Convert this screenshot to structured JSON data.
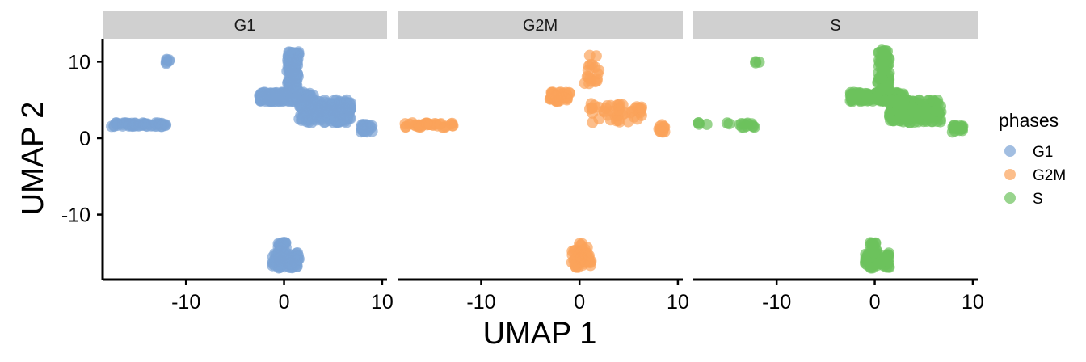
{
  "chart_data": {
    "type": "scatter",
    "xlabel": "UMAP 1",
    "ylabel": "UMAP 2",
    "xlim": [
      -18.5,
      10.5
    ],
    "ylim": [
      -18.5,
      13
    ],
    "x_ticks": [
      -10,
      0,
      10
    ],
    "x_tick_labels": [
      "-10",
      "0",
      "10"
    ],
    "y_ticks": [
      10,
      0,
      -10
    ],
    "y_tick_labels": [
      "10",
      "0",
      "-10"
    ],
    "grid": false,
    "legend": {
      "title": "phases",
      "position": "right"
    },
    "facets": [
      "G1",
      "G2M",
      "S"
    ],
    "series": [
      {
        "name": "G1",
        "facet": "G1",
        "color": "#7aa3d4",
        "clusters": [
          {
            "x0": -17.6,
            "x1": -12.0,
            "y0": 1.5,
            "y1": 2.0,
            "n": 60
          },
          {
            "x0": -12.2,
            "x1": -11.6,
            "y0": 9.7,
            "y1": 10.3,
            "n": 6
          },
          {
            "x0": -2.5,
            "x1": 3.0,
            "y0": 4.8,
            "y1": 6.0,
            "n": 140
          },
          {
            "x0": 0.3,
            "x1": 1.5,
            "y0": 6.0,
            "y1": 11.5,
            "n": 90
          },
          {
            "x0": 1.5,
            "x1": 6.8,
            "y0": 2.0,
            "y1": 5.0,
            "n": 160
          },
          {
            "x0": 7.8,
            "x1": 9.0,
            "y0": 0.8,
            "y1": 1.8,
            "n": 25
          },
          {
            "x0": -1.2,
            "x1": 1.6,
            "y0": -17.0,
            "y1": -15.0,
            "n": 70
          },
          {
            "x0": -0.6,
            "x1": 0.2,
            "y0": -15.0,
            "y1": -13.6,
            "n": 20
          }
        ]
      },
      {
        "name": "G2M",
        "facet": "G2M",
        "color": "#fba25a",
        "clusters": [
          {
            "x0": -18.0,
            "x1": -12.5,
            "y0": 1.4,
            "y1": 2.0,
            "n": 35
          },
          {
            "x0": -3.0,
            "x1": -1.0,
            "y0": 4.8,
            "y1": 6.0,
            "n": 40
          },
          {
            "x0": 0.5,
            "x1": 2.0,
            "y0": 7.0,
            "y1": 11.0,
            "n": 18
          },
          {
            "x0": 1.0,
            "x1": 6.5,
            "y0": 2.0,
            "y1": 4.5,
            "n": 45
          },
          {
            "x0": 7.8,
            "x1": 8.8,
            "y0": 0.8,
            "y1": 1.8,
            "n": 12
          },
          {
            "x0": -0.8,
            "x1": 1.2,
            "y0": -17.0,
            "y1": -13.8,
            "n": 40
          }
        ]
      },
      {
        "name": "S",
        "facet": "S",
        "color": "#6cc25d",
        "clusters": [
          {
            "x0": -18.0,
            "x1": -17.0,
            "y0": 1.5,
            "y1": 2.0,
            "n": 4
          },
          {
            "x0": -15.2,
            "x1": -14.8,
            "y0": 1.6,
            "y1": 2.0,
            "n": 2
          },
          {
            "x0": -13.8,
            "x1": -12.0,
            "y0": 1.4,
            "y1": 2.0,
            "n": 12
          },
          {
            "x0": -12.3,
            "x1": -11.7,
            "y0": 9.7,
            "y1": 10.2,
            "n": 3
          },
          {
            "x0": -2.5,
            "x1": 3.0,
            "y0": 4.8,
            "y1": 6.0,
            "n": 130
          },
          {
            "x0": 0.3,
            "x1": 1.5,
            "y0": 6.0,
            "y1": 11.5,
            "n": 70
          },
          {
            "x0": 1.5,
            "x1": 6.8,
            "y0": 2.0,
            "y1": 5.0,
            "n": 150
          },
          {
            "x0": 7.8,
            "x1": 9.0,
            "y0": 0.8,
            "y1": 1.8,
            "n": 22
          },
          {
            "x0": -1.0,
            "x1": 1.5,
            "y0": -17.0,
            "y1": -15.0,
            "n": 55
          },
          {
            "x0": -0.5,
            "x1": 0.2,
            "y0": -15.0,
            "y1": -13.6,
            "n": 15
          }
        ]
      }
    ]
  }
}
